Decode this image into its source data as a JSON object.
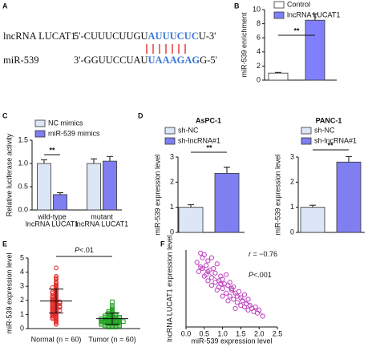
{
  "panel_labels": [
    "A",
    "B",
    "C",
    "D",
    "E",
    "F"
  ],
  "sequence": {
    "rows": [
      {
        "name": "lncRNA LUCAT1",
        "prefix": "5'-CUUUCUUGU",
        "site": "AUUUCUC",
        "suffix": "U-3'"
      },
      {
        "name": "miR-539",
        "prefix": "3'-GGUUCCUAU",
        "site": "UAAAGAG",
        "suffix": "G-5'"
      }
    ]
  },
  "chart_data": [
    {
      "type": "bar",
      "ylabel": "miR-539 enrichment",
      "series": [
        {
          "name": "Control",
          "color": "#ffffff",
          "values": [
            1.0
          ],
          "errors": [
            0.1
          ]
        },
        {
          "name": "lncRNA LUCAT1",
          "color": "#8080ff",
          "values": [
            8.5
          ],
          "errors": [
            0.9
          ]
        }
      ],
      "ylim": [
        0,
        10
      ],
      "yticks": [
        0,
        2,
        4,
        6,
        8,
        10
      ],
      "annotations": [
        "**"
      ]
    },
    {
      "type": "bar",
      "ylabel": "Relative luciferase activity",
      "categories": [
        [
          "wild-type",
          "lncRNA LUCAT1"
        ],
        [
          "mutant",
          "lncRNA LUCAT1"
        ]
      ],
      "series": [
        {
          "name": "NC mimics",
          "color": "#dce6f7",
          "values": [
            1.0,
            1.0
          ],
          "errors": [
            0.08,
            0.1
          ]
        },
        {
          "name": "miR-539 mimics",
          "color": "#7f7ff2",
          "values": [
            0.33,
            1.05
          ],
          "errors": [
            0.04,
            0.1
          ]
        }
      ],
      "ylim": [
        0,
        1.5
      ],
      "yticks": [
        {
          "value": 0,
          "label": "0.0"
        },
        0.5,
        {
          "value": 1,
          "label": "1.0"
        },
        1.5
      ],
      "annotations": [
        "**"
      ]
    },
    {
      "type": "bar",
      "title": "AsPC-1",
      "ylabel": "miR-539 expression level",
      "series": [
        {
          "name": "sh-NC",
          "color": "#dce6f7",
          "values": [
            1.0
          ],
          "errors": [
            0.1
          ]
        },
        {
          "name": "sh-lncRNA#1",
          "color": "#7f7ff2",
          "values": [
            2.35
          ],
          "errors": [
            0.25
          ]
        }
      ],
      "ylim": [
        0,
        3
      ],
      "yticks": [
        0,
        1,
        2,
        3
      ],
      "annotations": [
        "**"
      ]
    },
    {
      "type": "bar",
      "title": "PANC-1",
      "ylabel": "miR-539 expression level",
      "series": [
        {
          "name": "sh-NC",
          "color": "#dce6f7",
          "values": [
            1.0
          ],
          "errors": [
            0.08
          ]
        },
        {
          "name": "sh-lncRNA#1",
          "color": "#7f7ff2",
          "values": [
            2.8
          ],
          "errors": [
            0.22
          ]
        }
      ],
      "ylim": [
        0,
        3
      ],
      "yticks": [
        0,
        1,
        2,
        3
      ],
      "annotations": [
        "**"
      ]
    },
    {
      "type": "strip",
      "ylabel": "miR-539 expression level",
      "categories": [
        "Normal (n = 60)",
        "Tumor (n = 60)"
      ],
      "series": [
        {
          "color": "#e02020",
          "marker": "circle",
          "mean": 1.95,
          "sd": 0.85,
          "values": [
            4.3,
            3.7,
            3.6,
            3.5,
            3.3,
            3.2,
            3.1,
            3.0,
            2.9,
            2.9,
            2.8,
            2.7,
            2.6,
            2.6,
            2.5,
            2.5,
            2.4,
            2.3,
            2.3,
            2.2,
            2.2,
            2.1,
            2.1,
            2.0,
            2.0,
            1.9,
            1.9,
            1.9,
            1.8,
            1.8,
            1.8,
            1.7,
            1.7,
            1.6,
            1.6,
            1.6,
            1.5,
            1.5,
            1.5,
            1.4,
            1.4,
            1.3,
            1.3,
            1.3,
            1.2,
            1.2,
            1.1,
            1.1,
            1.0,
            1.0,
            0.9,
            0.9,
            0.8,
            0.8,
            0.7,
            0.7,
            0.6,
            0.5,
            0.4,
            0.3
          ]
        },
        {
          "color": "#1fa01f",
          "marker": "square",
          "mean": 0.7,
          "sd": 0.4,
          "values": [
            1.9,
            1.6,
            1.5,
            1.4,
            1.3,
            1.2,
            1.2,
            1.1,
            1.1,
            1.0,
            1.0,
            1.0,
            0.9,
            0.9,
            0.9,
            0.9,
            0.8,
            0.8,
            0.8,
            0.8,
            0.8,
            0.7,
            0.7,
            0.7,
            0.7,
            0.7,
            0.7,
            0.6,
            0.6,
            0.6,
            0.6,
            0.6,
            0.6,
            0.5,
            0.5,
            0.5,
            0.5,
            0.5,
            0.5,
            0.5,
            0.4,
            0.4,
            0.4,
            0.4,
            0.4,
            0.4,
            0.3,
            0.3,
            0.3,
            0.3,
            0.3,
            0.3,
            0.2,
            0.2,
            0.2,
            0.2,
            0.2,
            0.1,
            0.1,
            0.1
          ]
        }
      ],
      "ylim": [
        0,
        5
      ],
      "yticks": [
        0,
        1,
        2,
        3,
        4,
        5
      ],
      "annotation": [
        "P",
        "<.01"
      ]
    },
    {
      "type": "scatter",
      "xlabel": "miR-539 expression level",
      "ylabel": "lncRNA LUCAT1 expression level",
      "color": "#c040c0",
      "x": [
        0.3,
        0.35,
        0.4,
        0.4,
        0.45,
        0.5,
        0.5,
        0.55,
        0.6,
        0.6,
        0.65,
        0.7,
        0.7,
        0.75,
        0.8,
        0.8,
        0.85,
        0.9,
        0.9,
        0.95,
        1.0,
        1.0,
        1.05,
        1.1,
        1.1,
        1.15,
        1.2,
        1.2,
        1.25,
        1.3,
        1.3,
        1.35,
        1.4,
        1.4,
        1.45,
        1.5,
        1.5,
        1.55,
        1.6,
        1.6,
        1.65,
        1.7,
        1.7,
        1.75,
        1.8,
        1.85,
        1.9,
        1.95,
        2.0,
        2.1,
        0.45,
        0.55,
        0.7,
        0.85,
        1.0,
        1.15,
        1.25,
        0.6,
        0.95,
        1.35
      ],
      "y": [
        4.2,
        3.6,
        4.8,
        3.9,
        4.5,
        4.7,
        3.3,
        4.0,
        4.3,
        3.0,
        3.7,
        4.5,
        3.2,
        3.8,
        2.9,
        3.5,
        4.1,
        3.0,
        2.6,
        3.3,
        3.1,
        2.5,
        2.8,
        3.4,
        2.2,
        2.7,
        2.9,
        2.0,
        2.4,
        2.6,
        1.8,
        2.2,
        2.0,
        1.6,
        2.3,
        1.9,
        1.4,
        1.7,
        2.1,
        1.3,
        1.5,
        1.8,
        1.1,
        1.4,
        1.2,
        1.0,
        1.3,
        0.9,
        1.1,
        0.7,
        3.8,
        3.4,
        2.7,
        2.4,
        2.0,
        1.7,
        2.5,
        3.6,
        2.8,
        1.2
      ],
      "xlim": [
        0,
        2.5
      ],
      "xticks": [
        {
          "value": 0,
          "label": "0.0"
        },
        0.5,
        {
          "value": 1,
          "label": "1.0"
        },
        1.5,
        {
          "value": 2,
          "label": "2.0"
        },
        2.5
      ],
      "ylim": [
        0,
        5
      ],
      "fit": {
        "x": [
          0.3,
          2.1
        ],
        "y": [
          4.1,
          0.8
        ]
      },
      "annotations": [
        [
          "r",
          " = −0.76"
        ],
        [
          "P",
          "<.001"
        ]
      ]
    }
  ]
}
